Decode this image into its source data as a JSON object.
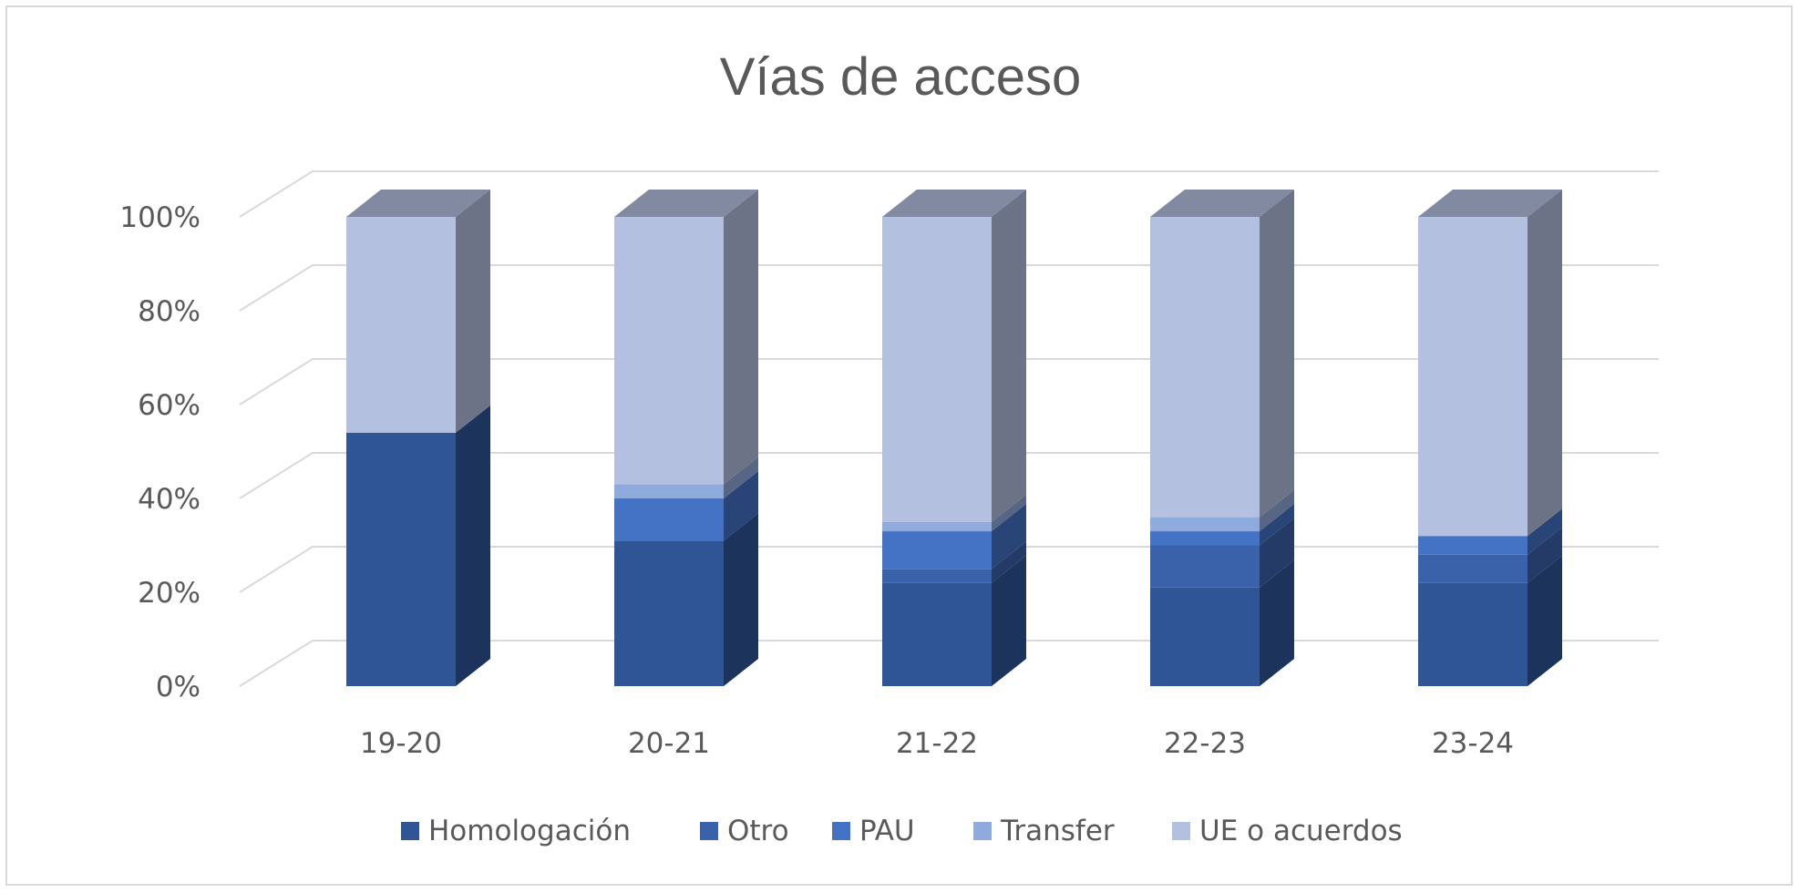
{
  "chart_data": {
    "type": "bar",
    "stacked": true,
    "percent_stacked": true,
    "three_d": true,
    "title": "Vías de acceso",
    "xlabel": "",
    "ylabel": "",
    "categories": [
      "19-20",
      "20-21",
      "21-22",
      "22-23",
      "23-24"
    ],
    "ylim": [
      0,
      100
    ],
    "yticks": [
      0,
      20,
      40,
      60,
      80,
      100
    ],
    "ytick_labels": [
      "0%",
      "20%",
      "40%",
      "60%",
      "80%",
      "100%"
    ],
    "grid": true,
    "legend_position": "bottom",
    "series": [
      {
        "name": "Homologación",
        "color": "#2f5597",
        "values": [
          54,
          31,
          22,
          21,
          22
        ]
      },
      {
        "name": "Otro",
        "color": "#3a62aa",
        "values": [
          0,
          0,
          3,
          9,
          6
        ]
      },
      {
        "name": "PAU",
        "color": "#4472c4",
        "values": [
          0,
          9,
          8,
          3,
          4
        ]
      },
      {
        "name": "Transfer",
        "color": "#8faadc",
        "values": [
          0,
          3,
          2,
          3,
          0
        ]
      },
      {
        "name": "UE o acuerdos",
        "color": "#b4c0e0",
        "values": [
          46,
          57,
          65,
          64,
          68
        ]
      }
    ]
  }
}
